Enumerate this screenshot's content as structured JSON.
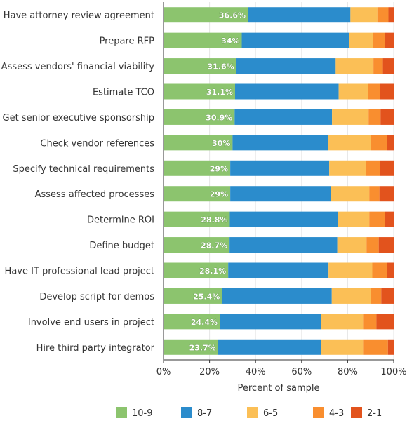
{
  "chart_data": {
    "type": "bar",
    "orientation": "horizontal",
    "stacked": true,
    "categories": [
      "Have attorney review agreement",
      "Prepare RFP",
      "Assess vendors' financial viability",
      "Estimate TCO",
      "Get senior executive sponsorship",
      "Check vendor references",
      "Specify technical requirements",
      "Assess affected processes",
      "Determine ROI",
      "Define budget",
      "Have IT professional lead project",
      "Develop script for demos",
      "Involve end users in project",
      "Hire third party integrator"
    ],
    "series": [
      {
        "name": "10-9",
        "color": "#8cc46e",
        "values": [
          36.6,
          34.0,
          31.6,
          31.1,
          30.9,
          30.0,
          29.0,
          29.0,
          28.8,
          28.7,
          28.1,
          25.4,
          24.4,
          23.7
        ]
      },
      {
        "name": "8-7",
        "color": "#2b8ccc",
        "values": [
          44.6,
          46.6,
          43.2,
          45.0,
          42.3,
          41.6,
          43.0,
          43.6,
          47.1,
          46.8,
          43.6,
          47.7,
          44.2,
          44.9
        ]
      },
      {
        "name": "6-5",
        "color": "#fbbf56",
        "values": [
          11.7,
          10.4,
          16.4,
          12.7,
          15.9,
          18.5,
          16.0,
          16.8,
          13.5,
          12.7,
          19.0,
          16.9,
          18.4,
          18.4
        ]
      },
      {
        "name": "4-3",
        "color": "#f98e2f",
        "values": [
          4.8,
          5.2,
          4.1,
          5.3,
          5.2,
          6.9,
          6.0,
          4.4,
          6.8,
          5.3,
          6.3,
          4.6,
          5.5,
          10.5
        ]
      },
      {
        "name": "2-1",
        "color": "#e2531d",
        "values": [
          2.3,
          3.8,
          4.7,
          5.9,
          5.7,
          3.0,
          6.0,
          6.2,
          3.8,
          6.5,
          3.0,
          5.4,
          7.5,
          2.5
        ]
      }
    ],
    "data_labels": [
      "36.6%",
      "34%",
      "31.6%",
      "31.1%",
      "30.9%",
      "30%",
      "29%",
      "29%",
      "28.8%",
      "28.7%",
      "28.1%",
      "25.4%",
      "24.4%",
      "23.7%"
    ],
    "xlabel": "Percent of sample",
    "ylabel": "",
    "xlim": [
      0,
      100
    ],
    "x_ticks": [
      "0%",
      "20%",
      "40%",
      "60%",
      "80%",
      "100%"
    ],
    "x_tick_values": [
      0,
      20,
      40,
      60,
      80,
      100
    ],
    "grid": true,
    "legend_position": "bottom"
  }
}
